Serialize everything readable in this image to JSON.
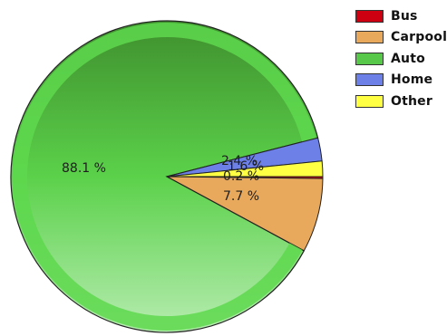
{
  "chart_data": {
    "type": "pie",
    "legend_position": "top-right",
    "slices": [
      {
        "label": "Bus",
        "value": 0.2,
        "color": "#cc0011",
        "value_label": "0.2 %"
      },
      {
        "label": "Carpool",
        "value": 7.7,
        "color": "#e8a95c",
        "value_label": "7.7 %"
      },
      {
        "label": "Auto",
        "value": 88.1,
        "color": "#57c84a",
        "value_label": "88.1 %"
      },
      {
        "label": "Home",
        "value": 2.4,
        "color": "#6c80e8",
        "value_label": "2.4 %"
      },
      {
        "label": "Other",
        "value": 1.6,
        "color": "#ffff44",
        "value_label": "1.6 %"
      }
    ]
  }
}
